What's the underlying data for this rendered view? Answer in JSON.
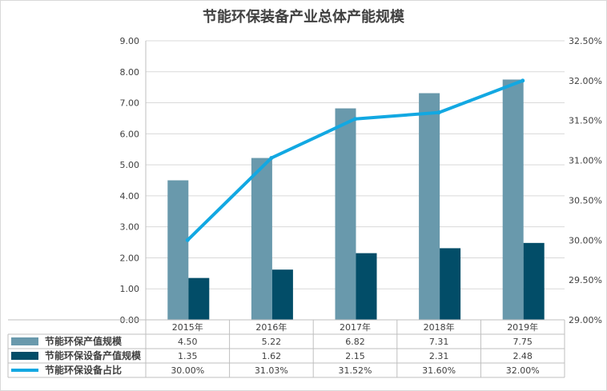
{
  "chart_data": {
    "type": "bar",
    "title": "节能环保装备产业总体产能规模",
    "categories": [
      "2015年",
      "2016年",
      "2017年",
      "2018年",
      "2019年"
    ],
    "series": [
      {
        "name": "节能环保产值规模",
        "type": "bar",
        "axis": "left",
        "color": "#6999AC",
        "values": [
          4.5,
          5.22,
          6.82,
          7.31,
          7.75
        ],
        "labels": [
          "4.50",
          "5.22",
          "6.82",
          "7.31",
          "7.75"
        ]
      },
      {
        "name": "节能环保设备产值规模",
        "type": "bar",
        "axis": "left",
        "color": "#024D68",
        "values": [
          1.35,
          1.62,
          2.15,
          2.31,
          2.48
        ],
        "labels": [
          "1.35",
          "1.62",
          "2.15",
          "2.31",
          "2.48"
        ]
      },
      {
        "name": "节能环保设备占比",
        "type": "line",
        "axis": "right",
        "color": "#12A8E2",
        "values": [
          30.0,
          31.03,
          31.52,
          31.6,
          32.0
        ],
        "labels": [
          "30.00%",
          "31.03%",
          "31.52%",
          "31.60%",
          "32.00%"
        ]
      }
    ],
    "y_left": {
      "min": 0,
      "max": 9,
      "step": 1,
      "tick_labels": [
        "0.00",
        "1.00",
        "2.00",
        "3.00",
        "4.00",
        "5.00",
        "6.00",
        "7.00",
        "8.00",
        "9.00"
      ]
    },
    "y_right": {
      "min": 29,
      "max": 32.5,
      "step": 0.5,
      "tick_labels": [
        "29.00%",
        "29.50%",
        "30.00%",
        "30.50%",
        "31.00%",
        "31.50%",
        "32.00%",
        "32.50%"
      ]
    },
    "grid": true,
    "legend": "data-table-bottom"
  }
}
